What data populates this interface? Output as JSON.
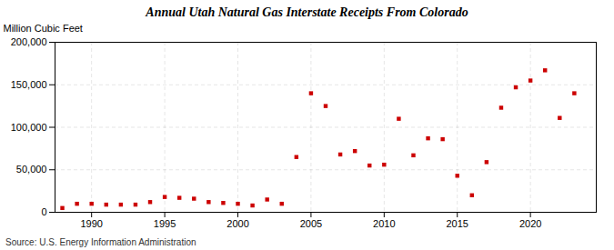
{
  "chart_data": {
    "type": "scatter",
    "title": "Annual Utah Natural Gas Interstate Receipts From Colorado",
    "ylabel": "Million Cubic Feet",
    "source": "Source: U.S. Energy Information Administration",
    "x": [
      1988,
      1989,
      1990,
      1991,
      1992,
      1993,
      1994,
      1995,
      1996,
      1997,
      1998,
      1999,
      2000,
      2001,
      2002,
      2003,
      2004,
      2005,
      2006,
      2007,
      2008,
      2009,
      2010,
      2011,
      2012,
      2013,
      2014,
      2015,
      2016,
      2017,
      2018,
      2019,
      2020,
      2021,
      2022,
      2023
    ],
    "values": [
      5000,
      10000,
      10000,
      9000,
      9000,
      9000,
      12000,
      18000,
      17000,
      16000,
      12000,
      11000,
      10000,
      8000,
      15000,
      10000,
      65000,
      140000,
      125000,
      68000,
      72000,
      55000,
      56000,
      110000,
      67000,
      87000,
      86000,
      43000,
      20000,
      59000,
      123000,
      147000,
      155000,
      167000,
      111000,
      140000
    ],
    "color": "#cc0000",
    "marker": "square",
    "xlim": [
      1987.5,
      2024.5
    ],
    "xticks": [
      1990,
      1995,
      2000,
      2005,
      2010,
      2015,
      2020
    ],
    "ylim": [
      0,
      200000
    ],
    "yticks": [
      0,
      {
        "value": 50000,
        "label": "50,000"
      },
      {
        "value": 100000,
        "label": "100,000"
      },
      {
        "value": 150000,
        "label": "150,000"
      },
      {
        "value": 200000,
        "label": "200,000"
      }
    ],
    "grid": true
  }
}
